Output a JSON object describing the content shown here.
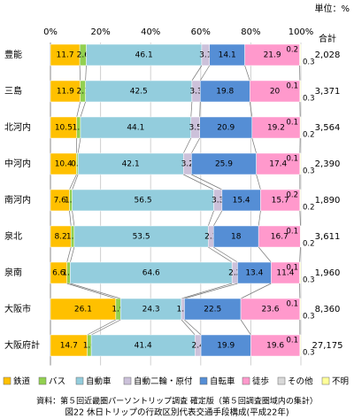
{
  "chart_data": {
    "type": "stacked-barh",
    "title": "図22 休日トリップの行政区別代表交通手段構成(平成22年)",
    "source": "資料：第５回近畿圏パーソントリップ調査 確定版（第５回調査圏域内の集計）",
    "unit": "単位：%",
    "categories": [
      "豊能",
      "三島",
      "北河内",
      "中河内",
      "南河内",
      "泉北",
      "泉南",
      "大阪市",
      "大阪府計"
    ],
    "series": [
      {
        "name": "鉄道",
        "color": "#FFC000",
        "values": [
          11.7,
          11.9,
          10.5,
          10.4,
          7.6,
          8.2,
          6.6,
          26.1,
          14.7
        ]
      },
      {
        "name": "バス",
        "color": "#92D050",
        "values": [
          2.6,
          2.1,
          1.5,
          0.6,
          1.1,
          1.3,
          1.3,
          1.9,
          1.6
        ]
      },
      {
        "name": "自動車",
        "color": "#93CDDD",
        "values": [
          46.1,
          42.5,
          44.1,
          42.1,
          56.5,
          53.5,
          64.6,
          24.3,
          41.4
        ]
      },
      {
        "name": "自動二輪・原付",
        "color": "#CCC1DA",
        "values": [
          3.1,
          3.3,
          3.5,
          3.2,
          3.3,
          2.1,
          2.2,
          1.2,
          2.4
        ]
      },
      {
        "name": "自転車",
        "color": "#558ED5",
        "values": [
          14.1,
          19.8,
          20.9,
          25.9,
          15.4,
          18.0,
          13.4,
          22.5,
          19.9
        ]
      },
      {
        "name": "徒歩",
        "color": "#FF99CC",
        "values": [
          21.9,
          20.0,
          19.2,
          17.4,
          15.7,
          16.7,
          11.4,
          23.6,
          19.6
        ]
      },
      {
        "name": "その他",
        "color": "#D9D9D9",
        "values": [
          0.2,
          0.1,
          0.1,
          0.1,
          0.2,
          0.1,
          0.1,
          0.1,
          0.1
        ]
      },
      {
        "name": "不明",
        "color": "#FFFF99",
        "values": [
          0.3,
          0.3,
          0.2,
          0.3,
          0.2,
          0.2,
          0.3,
          0.3,
          0.3
        ]
      }
    ],
    "totals": {
      "label": "合計",
      "values": [
        2028,
        3371,
        3564,
        2390,
        1890,
        3611,
        1960,
        8360,
        27175
      ],
      "value_labels": [
        "2,028",
        "3,371",
        "3,564",
        "2,390",
        "1,890",
        "3,611",
        "1,960",
        "8,360",
        "27,175"
      ]
    },
    "xlim": [
      0,
      100
    ],
    "xticks": [
      {
        "value": 0,
        "label": "0%"
      },
      {
        "value": 20,
        "label": "20%"
      },
      {
        "value": 40,
        "label": "40%"
      },
      {
        "value": 60,
        "label": "60%"
      },
      {
        "value": 80,
        "label": "80%"
      },
      {
        "value": 100,
        "label": "100%"
      }
    ],
    "grid": true
  }
}
